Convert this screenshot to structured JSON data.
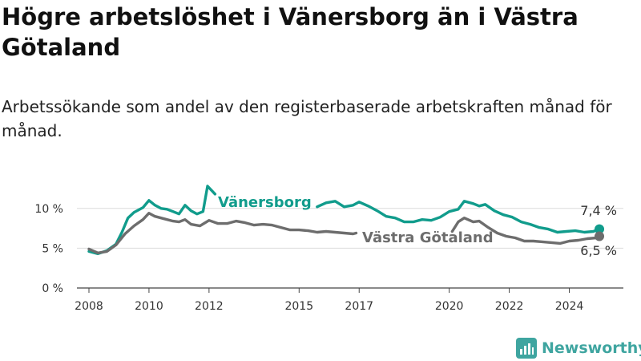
{
  "chart_data": {
    "type": "line",
    "title": "Högre arbetslöshet i Vänersborg än i Västra Götaland",
    "subtitle": "Arbetssökande som andel av den registerbaserade arbetskraften månad för månad.",
    "xlabel": "",
    "ylabel": "",
    "x_ticks": [
      "2008",
      "2010",
      "2012",
      "2015",
      "2017",
      "2020",
      "2022",
      "2024"
    ],
    "y_ticks": [
      "0 %",
      "5 %",
      "10 %"
    ],
    "ylim": [
      0,
      13
    ],
    "xlim": [
      2007.6,
      2025.8
    ],
    "grid": "horizontal",
    "legend": "direct-labels",
    "series": [
      {
        "name": "Vänersborg",
        "color": "#119c8c",
        "end_label": "7,4 %",
        "points": [
          [
            2008.0,
            4.6
          ],
          [
            2008.3,
            4.3
          ],
          [
            2008.6,
            4.7
          ],
          [
            2008.9,
            5.5
          ],
          [
            2009.1,
            7.0
          ],
          [
            2009.3,
            8.8
          ],
          [
            2009.5,
            9.5
          ],
          [
            2009.8,
            10.1
          ],
          [
            2010.0,
            11.0
          ],
          [
            2010.2,
            10.4
          ],
          [
            2010.4,
            10.0
          ],
          [
            2010.6,
            9.9
          ],
          [
            2010.8,
            9.6
          ],
          [
            2011.0,
            9.3
          ],
          [
            2011.2,
            10.4
          ],
          [
            2011.4,
            9.7
          ],
          [
            2011.6,
            9.3
          ],
          [
            2011.8,
            9.6
          ],
          [
            2011.95,
            12.8
          ],
          [
            2012.2,
            11.8
          ],
          [
            null,
            null
          ],
          [
            2015.6,
            10.2
          ],
          [
            2015.9,
            10.7
          ],
          [
            2016.2,
            10.9
          ],
          [
            2016.5,
            10.2
          ],
          [
            2016.8,
            10.4
          ],
          [
            2017.0,
            10.8
          ],
          [
            2017.3,
            10.3
          ],
          [
            2017.6,
            9.7
          ],
          [
            2017.9,
            9.0
          ],
          [
            2018.2,
            8.8
          ],
          [
            2018.5,
            8.3
          ],
          [
            2018.8,
            8.3
          ],
          [
            2019.1,
            8.6
          ],
          [
            2019.4,
            8.5
          ],
          [
            2019.7,
            8.9
          ],
          [
            2020.0,
            9.6
          ],
          [
            2020.3,
            9.9
          ],
          [
            2020.5,
            10.9
          ],
          [
            2020.8,
            10.6
          ],
          [
            2021.0,
            10.3
          ],
          [
            2021.2,
            10.5
          ],
          [
            2021.5,
            9.7
          ],
          [
            2021.8,
            9.2
          ],
          [
            2022.1,
            8.9
          ],
          [
            2022.4,
            8.3
          ],
          [
            2022.7,
            8.0
          ],
          [
            2023.0,
            7.6
          ],
          [
            2023.3,
            7.4
          ],
          [
            2023.6,
            7.0
          ],
          [
            2023.9,
            7.1
          ],
          [
            2024.2,
            7.2
          ],
          [
            2024.5,
            7.0
          ],
          [
            2024.8,
            7.1
          ],
          [
            2025.0,
            7.4
          ]
        ]
      },
      {
        "name": "Västra Götaland",
        "color": "#6d6d6d",
        "end_label": "6,5 %",
        "points": [
          [
            2008.0,
            4.9
          ],
          [
            2008.3,
            4.4
          ],
          [
            2008.6,
            4.6
          ],
          [
            2008.9,
            5.4
          ],
          [
            2009.2,
            6.8
          ],
          [
            2009.5,
            7.8
          ],
          [
            2009.8,
            8.6
          ],
          [
            2010.0,
            9.4
          ],
          [
            2010.2,
            9.0
          ],
          [
            2010.5,
            8.7
          ],
          [
            2010.8,
            8.4
          ],
          [
            2011.0,
            8.3
          ],
          [
            2011.2,
            8.6
          ],
          [
            2011.4,
            8.0
          ],
          [
            2011.7,
            7.8
          ],
          [
            2012.0,
            8.5
          ],
          [
            2012.3,
            8.1
          ],
          [
            2012.6,
            8.1
          ],
          [
            2012.9,
            8.4
          ],
          [
            2013.2,
            8.2
          ],
          [
            2013.5,
            7.9
          ],
          [
            2013.8,
            8.0
          ],
          [
            2014.1,
            7.9
          ],
          [
            2014.4,
            7.6
          ],
          [
            2014.7,
            7.3
          ],
          [
            2015.0,
            7.3
          ],
          [
            2015.3,
            7.2
          ],
          [
            2015.6,
            7.0
          ],
          [
            2015.9,
            7.1
          ],
          [
            2016.2,
            7.0
          ],
          [
            2016.5,
            6.9
          ],
          [
            2016.8,
            6.8
          ],
          [
            2016.9,
            6.9
          ],
          [
            null,
            null
          ],
          [
            2020.1,
            7.1
          ],
          [
            2020.3,
            8.3
          ],
          [
            2020.5,
            8.8
          ],
          [
            2020.8,
            8.3
          ],
          [
            2021.0,
            8.4
          ],
          [
            2021.3,
            7.6
          ],
          [
            2021.6,
            6.9
          ],
          [
            2021.9,
            6.5
          ],
          [
            2022.2,
            6.3
          ],
          [
            2022.5,
            5.9
          ],
          [
            2022.8,
            5.9
          ],
          [
            2023.1,
            5.8
          ],
          [
            2023.4,
            5.7
          ],
          [
            2023.7,
            5.6
          ],
          [
            2024.0,
            5.9
          ],
          [
            2024.3,
            6.0
          ],
          [
            2024.6,
            6.2
          ],
          [
            2024.9,
            6.3
          ],
          [
            2025.0,
            6.5
          ]
        ]
      }
    ]
  },
  "brand": {
    "name": "Newsworthy",
    "color": "#3fa5a0"
  }
}
